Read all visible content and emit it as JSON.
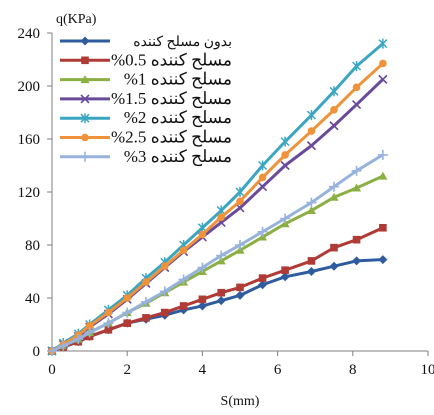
{
  "chart_data": {
    "type": "line",
    "title": "",
    "xlabel": "S(mm)",
    "ylabel": "q(KPa)",
    "xlim": [
      0,
      10
    ],
    "ylim": [
      0,
      240
    ],
    "xticks": [
      0,
      2,
      4,
      6,
      8,
      10
    ],
    "yticks": [
      0,
      40,
      80,
      120,
      160,
      200,
      240
    ],
    "grid": false,
    "legend_position": "top-left",
    "series": [
      {
        "name": "بدون مسلح کننده",
        "color": "#2e5c9e",
        "marker": "diamond",
        "x": [
          0,
          0.3,
          0.7,
          1.0,
          1.5,
          2.0,
          2.5,
          3.0,
          3.5,
          4.0,
          4.5,
          5.0,
          5.6,
          6.2,
          6.9,
          7.5,
          8.1,
          8.8
        ],
        "y": [
          0,
          3,
          7,
          11,
          16,
          21,
          24,
          27,
          31,
          34,
          38,
          42,
          50,
          56,
          60,
          64,
          68,
          69
        ]
      },
      {
        "name": "%0.5 مسلح کننده",
        "color": "#b03a35",
        "marker": "square",
        "x": [
          0,
          0.3,
          0.7,
          1.0,
          1.5,
          2.0,
          2.5,
          3.0,
          3.5,
          4.0,
          4.5,
          5.0,
          5.6,
          6.2,
          6.9,
          7.5,
          8.1,
          8.8
        ],
        "y": [
          0,
          3,
          7,
          11,
          16,
          21,
          25,
          29,
          34,
          39,
          44,
          48,
          55,
          61,
          68,
          78,
          84,
          93
        ]
      },
      {
        "name": "%1 مسلح کننده",
        "color": "#8ab043",
        "marker": "triangle",
        "x": [
          0,
          0.3,
          0.7,
          1.0,
          1.5,
          2.0,
          2.5,
          3.0,
          3.5,
          4.0,
          4.5,
          5.0,
          5.6,
          6.2,
          6.9,
          7.5,
          8.1,
          8.8
        ],
        "y": [
          0,
          4,
          9,
          14,
          21,
          29,
          36,
          44,
          52,
          60,
          68,
          76,
          86,
          96,
          106,
          116,
          123,
          132
        ]
      },
      {
        "name": "%1.5 مسلح کننده",
        "color": "#6a4a9b",
        "marker": "x",
        "x": [
          0,
          0.3,
          0.7,
          1.0,
          1.5,
          2.0,
          2.5,
          3.0,
          3.5,
          4.0,
          4.5,
          5.0,
          5.6,
          6.2,
          6.9,
          7.5,
          8.1,
          8.8
        ],
        "y": [
          0,
          5,
          11,
          18,
          28,
          39,
          51,
          63,
          75,
          86,
          97,
          108,
          124,
          140,
          155,
          170,
          186,
          205
        ]
      },
      {
        "name": "%2 مسلح کننده",
        "color": "#3ba6c2",
        "marker": "star",
        "x": [
          0,
          0.3,
          0.7,
          1.0,
          1.5,
          2.0,
          2.5,
          3.0,
          3.5,
          4.0,
          4.5,
          5.0,
          5.6,
          6.2,
          6.9,
          7.5,
          8.1,
          8.8
        ],
        "y": [
          0,
          6,
          13,
          20,
          31,
          42,
          55,
          67,
          80,
          93,
          106,
          120,
          140,
          158,
          178,
          196,
          215,
          232
        ]
      },
      {
        "name": "%2.5 مسلح کننده",
        "color": "#f0923a",
        "marker": "circle",
        "x": [
          0,
          0.3,
          0.7,
          1.0,
          1.5,
          2.0,
          2.5,
          3.0,
          3.5,
          4.0,
          4.5,
          5.0,
          5.6,
          6.2,
          6.9,
          7.5,
          8.1,
          8.8
        ],
        "y": [
          0,
          5,
          12,
          19,
          29,
          40,
          52,
          64,
          76,
          88,
          101,
          113,
          131,
          148,
          166,
          182,
          199,
          217
        ]
      },
      {
        "name": "%3 مسلح کننده",
        "color": "#97b3dc",
        "marker": "plus",
        "x": [
          0,
          0.3,
          0.7,
          1.0,
          1.5,
          2.0,
          2.5,
          3.0,
          3.5,
          4.0,
          4.5,
          5.0,
          5.6,
          6.2,
          6.9,
          7.5,
          8.1,
          8.8
        ],
        "y": [
          0,
          4,
          9,
          14,
          21,
          29,
          37,
          45,
          54,
          63,
          72,
          80,
          90,
          100,
          112,
          124,
          136,
          148
        ]
      }
    ]
  }
}
